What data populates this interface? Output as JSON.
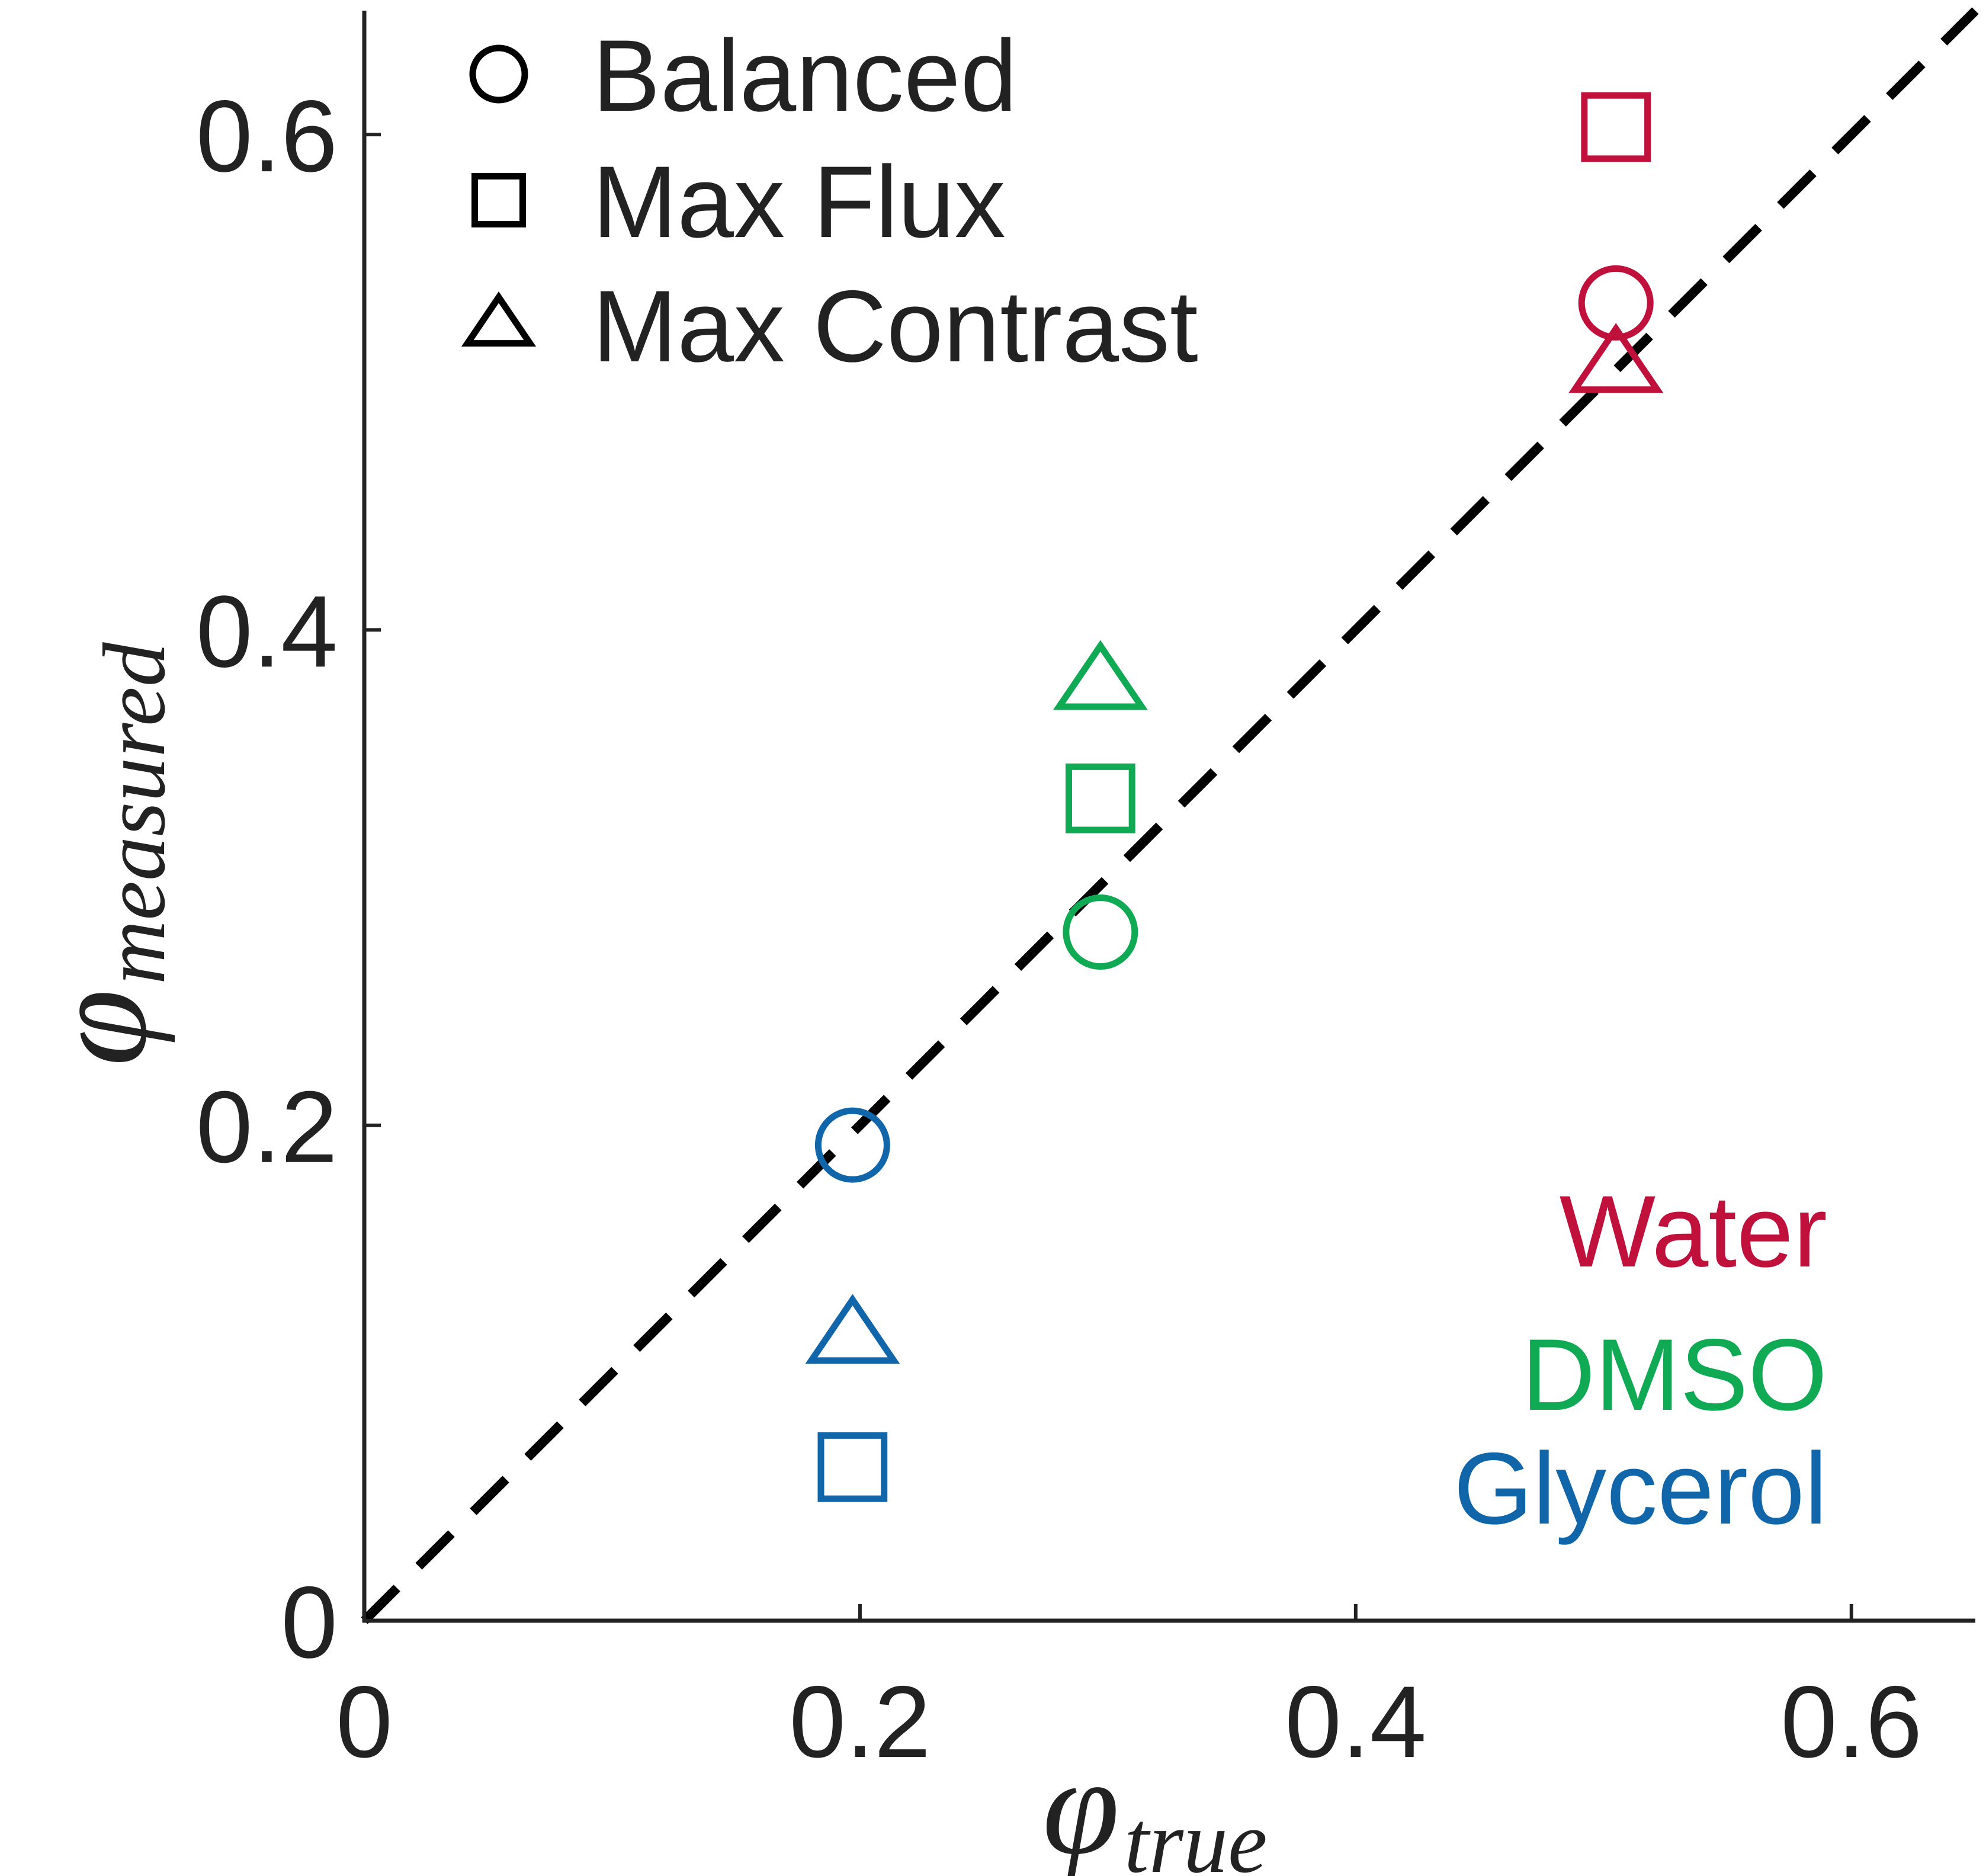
{
  "chart_data": {
    "type": "scatter",
    "xlabel": {
      "symbol": "φ",
      "subscript": "true"
    },
    "ylabel": {
      "symbol": "φ",
      "subscript": "measured"
    },
    "xlim": [
      0,
      0.65
    ],
    "ylim": [
      0,
      0.65
    ],
    "x_ticks": [
      0,
      0.2,
      0.4,
      0.6
    ],
    "y_ticks": [
      0,
      0.2,
      0.4,
      0.6
    ],
    "x_tick_labels": [
      "0",
      "0.2",
      "0.4",
      "0.6"
    ],
    "y_tick_labels": [
      "0",
      "0.2",
      "0.4",
      "0.6"
    ],
    "grid": false,
    "reference_line": {
      "style": "dashed",
      "color": "#000000",
      "from": [
        0,
        0
      ],
      "to": [
        0.65,
        0.65
      ]
    },
    "marker_legend": {
      "placement": "top-left",
      "entries": [
        {
          "marker": "circle",
          "label": "Balanced"
        },
        {
          "marker": "square",
          "label": "Max Flux"
        },
        {
          "marker": "triangle",
          "label": "Max Contrast"
        }
      ]
    },
    "color_legend": {
      "placement": "bottom-right",
      "entries": [
        {
          "label": "Water",
          "color": "#c0103c"
        },
        {
          "label": "DMSO",
          "color": "#10aa55"
        },
        {
          "label": "Glycerol",
          "color": "#1166aa"
        }
      ]
    },
    "series": [
      {
        "solvent": "Water",
        "color": "#c0103c",
        "points": [
          {
            "x": 0.505,
            "y": 0.532,
            "marker": "circle"
          },
          {
            "x": 0.505,
            "y": 0.603,
            "marker": "square"
          },
          {
            "x": 0.505,
            "y": 0.507,
            "marker": "triangle"
          }
        ]
      },
      {
        "solvent": "DMSO",
        "color": "#10aa55",
        "points": [
          {
            "x": 0.297,
            "y": 0.278,
            "marker": "circle"
          },
          {
            "x": 0.297,
            "y": 0.332,
            "marker": "square"
          },
          {
            "x": 0.297,
            "y": 0.379,
            "marker": "triangle"
          }
        ]
      },
      {
        "solvent": "Glycerol",
        "color": "#1166aa",
        "points": [
          {
            "x": 0.197,
            "y": 0.192,
            "marker": "circle"
          },
          {
            "x": 0.197,
            "y": 0.062,
            "marker": "square"
          },
          {
            "x": 0.197,
            "y": 0.115,
            "marker": "triangle"
          }
        ]
      }
    ]
  }
}
